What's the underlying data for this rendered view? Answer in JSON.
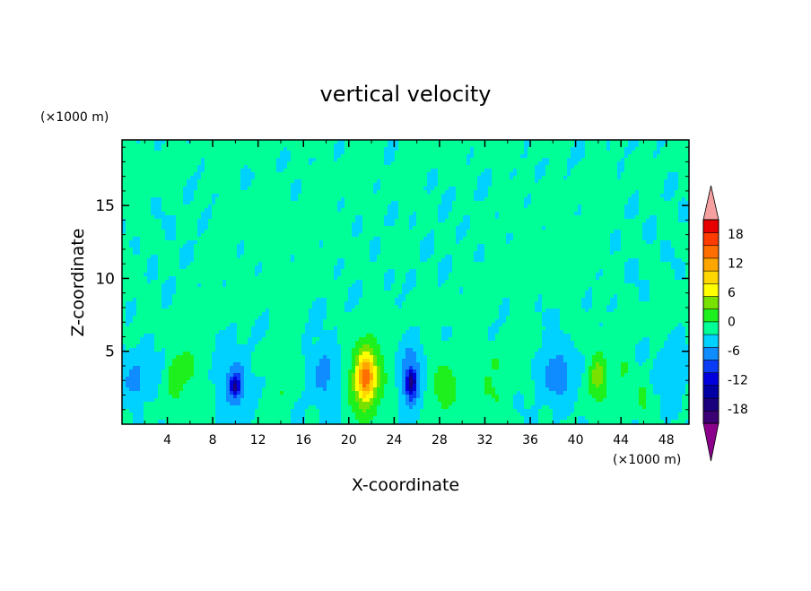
{
  "chart_data": {
    "type": "heatmap",
    "title": "vertical velocity",
    "xlabel": "X-coordinate",
    "ylabel": "Z-coordinate",
    "x_unit": "(×1000 m)",
    "y_unit": "(×1000 m)",
    "xlim": [
      0,
      50
    ],
    "ylim": [
      0,
      19.5
    ],
    "x_ticks": [
      4,
      8,
      12,
      16,
      20,
      24,
      28,
      32,
      36,
      40,
      44,
      48
    ],
    "y_ticks": [
      5,
      10,
      15
    ],
    "colorbar": {
      "ticks": [
        18,
        12,
        6,
        0,
        -6,
        -12,
        -18
      ],
      "range": [
        -21,
        21
      ],
      "step": 3,
      "extend": "both",
      "colors": [
        "#3b0073",
        "#1a007d",
        "#0000a5",
        "#0000dd",
        "#0a3cf5",
        "#0f8cff",
        "#00d2ff",
        "#00ff96",
        "#1ef01e",
        "#78e100",
        "#ffff00",
        "#ffd700",
        "#ffa500",
        "#ff6e00",
        "#ff3c00",
        "#e60000",
        "#f5a0a0",
        "#8b008b"
      ],
      "over_color": "#f5a0a0",
      "under_color": "#8b008b"
    },
    "field": {
      "background_value": 0.5,
      "features": [
        {
          "x": 1.5,
          "z": 2.8,
          "w": 1.6,
          "h": 2.2,
          "v": -4
        },
        {
          "x": 2.2,
          "z": 1.3,
          "w": 0.6,
          "h": 0.8,
          "v": 3
        },
        {
          "x": 4.8,
          "z": 3.2,
          "w": 0.9,
          "h": 1.8,
          "v": 5
        },
        {
          "x": 6.0,
          "z": 4.2,
          "w": 0.6,
          "h": 1.0,
          "v": 3
        },
        {
          "x": 10.0,
          "z": 2.8,
          "w": 1.3,
          "h": 2.2,
          "v": -6
        },
        {
          "x": 10.0,
          "z": 2.6,
          "w": 0.4,
          "h": 0.6,
          "v": -11
        },
        {
          "x": 14.0,
          "z": 2.2,
          "w": 0.7,
          "h": 1.2,
          "v": 3
        },
        {
          "x": 18.0,
          "z": 3.5,
          "w": 1.4,
          "h": 2.5,
          "v": -4
        },
        {
          "x": 21.5,
          "z": 3.2,
          "w": 1.5,
          "h": 2.6,
          "v": 9
        },
        {
          "x": 21.5,
          "z": 3.2,
          "w": 0.7,
          "h": 1.4,
          "v": 12
        },
        {
          "x": 25.5,
          "z": 3.0,
          "w": 1.0,
          "h": 2.2,
          "v": -7
        },
        {
          "x": 25.5,
          "z": 2.8,
          "w": 0.4,
          "h": 0.8,
          "v": -11
        },
        {
          "x": 28.5,
          "z": 2.5,
          "w": 1.3,
          "h": 1.8,
          "v": 4
        },
        {
          "x": 32.5,
          "z": 2.2,
          "w": 1.3,
          "h": 1.4,
          "v": 3
        },
        {
          "x": 33.0,
          "z": 4.2,
          "w": 0.5,
          "h": 0.6,
          "v": 3
        },
        {
          "x": 38.5,
          "z": 3.5,
          "w": 1.6,
          "h": 2.0,
          "v": -5
        },
        {
          "x": 42.0,
          "z": 3.2,
          "w": 0.9,
          "h": 1.8,
          "v": 7
        },
        {
          "x": 44.2,
          "z": 3.8,
          "w": 0.7,
          "h": 1.0,
          "v": 3
        },
        {
          "x": 46.0,
          "z": 1.8,
          "w": 0.5,
          "h": 1.0,
          "v": 4
        },
        {
          "x": 48.5,
          "z": 3.0,
          "w": 1.2,
          "h": 2.5,
          "v": -3
        }
      ]
    }
  }
}
